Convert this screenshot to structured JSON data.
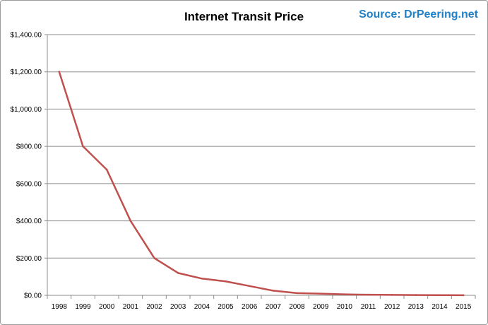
{
  "source_label": "Source: DrPeering.net",
  "chart_data": {
    "type": "line",
    "title": "Internet Transit Price",
    "xlabel": "",
    "ylabel": "",
    "x": [
      "1998",
      "1999",
      "2000",
      "2001",
      "2002",
      "2003",
      "2004",
      "2005",
      "2006",
      "2007",
      "2008",
      "2009",
      "2010",
      "2011",
      "2012",
      "2013",
      "2014",
      "2015"
    ],
    "series": [
      {
        "name": "",
        "color": "#c0504d",
        "values": [
          1200,
          800,
          675,
          400,
          200,
          120,
          90,
          75,
          50,
          25,
          12,
          9,
          5,
          3.25,
          2.34,
          1.57,
          0.94,
          0.63
        ]
      }
    ],
    "ylim": [
      0,
      1400
    ],
    "yticks": [
      0,
      200,
      400,
      600,
      800,
      1000,
      1200,
      1400
    ],
    "ytick_labels": [
      "$0.00",
      "$200.00",
      "$400.00",
      "$600.00",
      "$800.00",
      "$1,000.00",
      "$1,200.00",
      "$1,400.00"
    ],
    "grid": "horizontal",
    "legend": "none"
  }
}
